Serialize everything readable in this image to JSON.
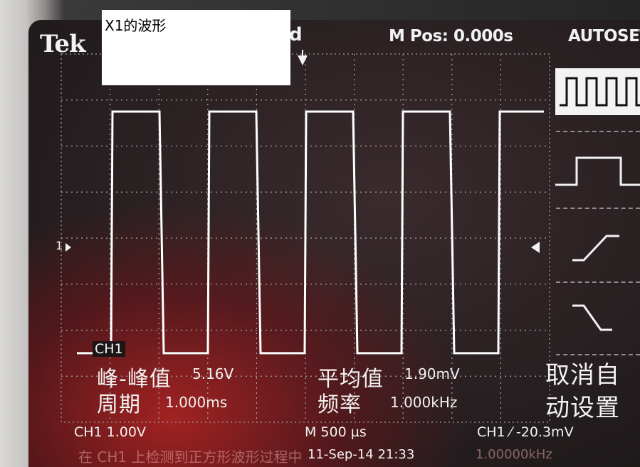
{
  "caption": "X1的波形",
  "header": {
    "brand": "Tek",
    "trigger_state": "'d",
    "m_pos": "M Pos: 0.000s",
    "menu_title": "AUTOSET"
  },
  "channel": {
    "label": "CH1",
    "marker": "1"
  },
  "measurements": {
    "peak_to_peak_label": "峰-峰值",
    "peak_to_peak_value": "5.16V",
    "mean_label": "平均值",
    "mean_value": "1.90mV",
    "period_label": "周期",
    "period_value": "1.000ms",
    "frequency_label": "频率",
    "frequency_value": "1.000kHz"
  },
  "side_menu": {
    "items": [
      "square-wave-icon",
      "single-pulse-icon",
      "rising-edge-icon",
      "falling-edge-icon"
    ],
    "cancel_line1": "取消自",
    "cancel_line2": "动设置"
  },
  "status_bar": {
    "ch1_scale": "CH1  1.00V",
    "timebase": "M 500 µs",
    "trigger": "CH1 ⁄ -20.3mV",
    "message": "在 CH1 上检测到正方形波形过程中",
    "datetime": "11-Sep-14 21:33",
    "freq_readout": "1.00000kHz"
  },
  "colors": {
    "trace": "#ffffff",
    "graticule": "#bdbdbd",
    "screen_dark": "#221b1d",
    "screen_red": "#b92323"
  },
  "waveform": {
    "type": "square",
    "period_ms": 1.0,
    "duty_cycle": 0.5,
    "high_divisions": 2.75,
    "low_divisions": -2.5
  }
}
